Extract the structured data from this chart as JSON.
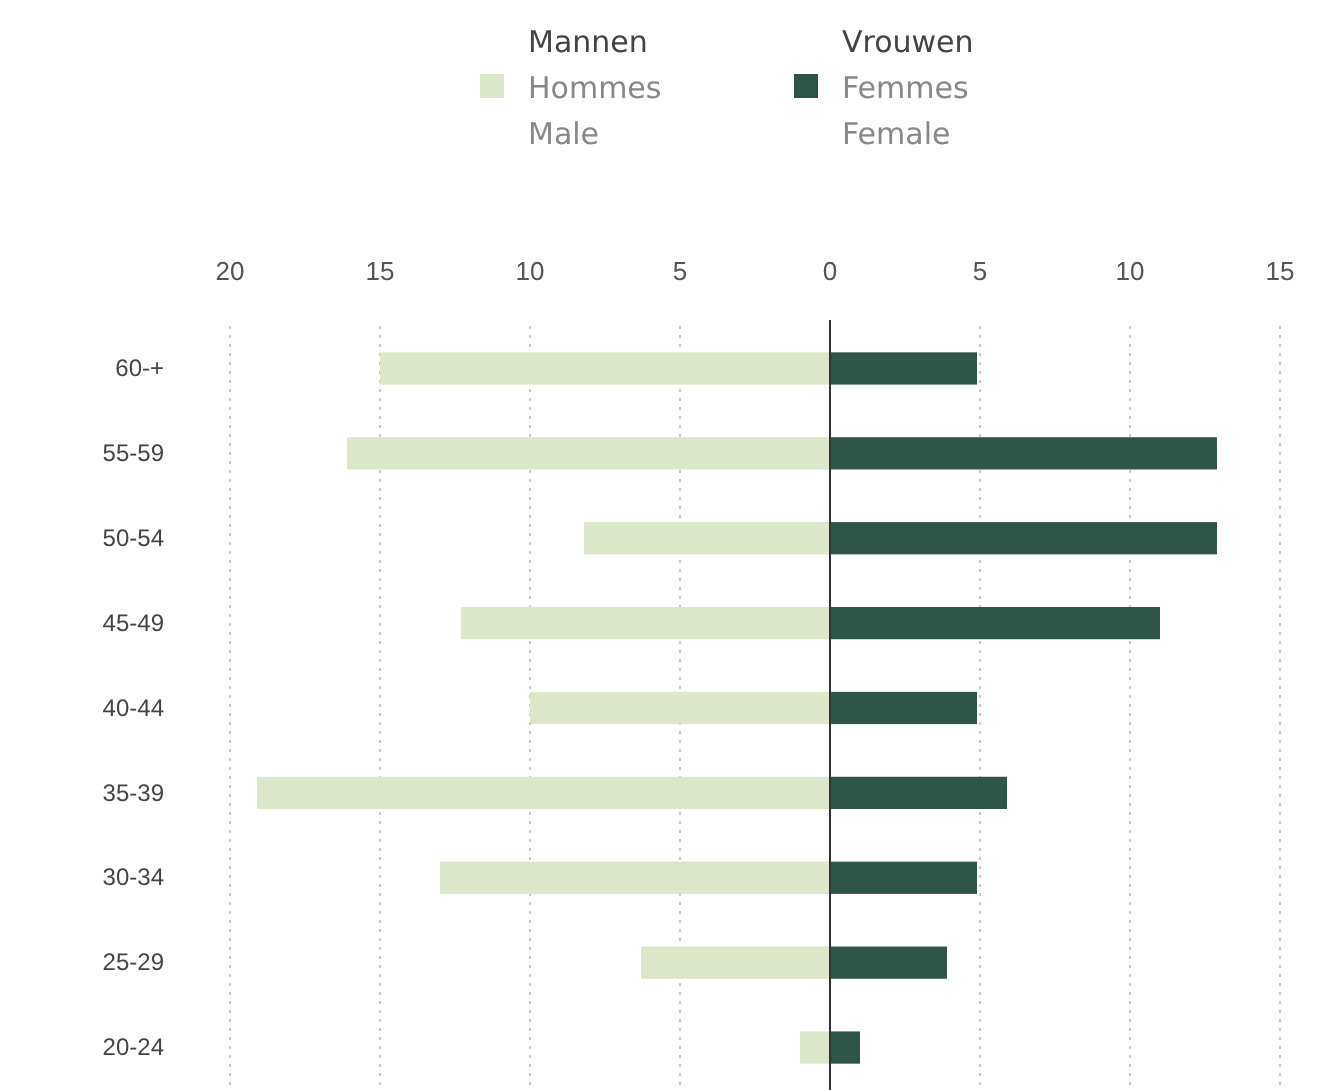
{
  "chart_data": {
    "type": "bar",
    "orientation": "horizontal",
    "stacked": true,
    "categories": [
      "60-+",
      "55-59",
      "50-54",
      "45-49",
      "40-44",
      "35-39",
      "30-34",
      "25-29",
      "20-24"
    ],
    "series": [
      {
        "name": "Mannen\nHommes\nMale",
        "color": "#dce6c8",
        "values": [
          -15,
          -16.1,
          -8.2,
          -12.3,
          -10,
          -19.1,
          -13,
          -6.3,
          -1
        ]
      },
      {
        "name": "Vrouwen\nFemmes\nFemale",
        "color": "#2f5549",
        "values": [
          4.9,
          12.9,
          12.9,
          11,
          4.9,
          5.9,
          4.9,
          3.9,
          1
        ]
      }
    ],
    "xlim": [
      -20,
      15
    ],
    "xticks": [
      {
        "value": -20,
        "label": "20"
      },
      {
        "value": -15,
        "label": "15"
      },
      {
        "value": -10,
        "label": "10"
      },
      {
        "value": -5,
        "label": "5"
      },
      0,
      5,
      10,
      15
    ],
    "grid": "x",
    "legend": "top"
  }
}
